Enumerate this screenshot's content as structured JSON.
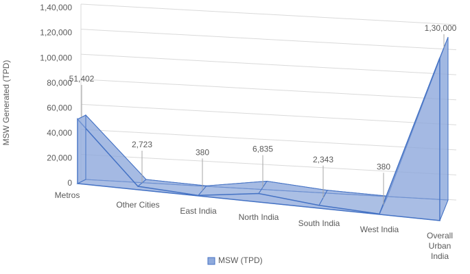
{
  "chart_data": {
    "type": "area3d",
    "y_label": "MSW Generated (TPD)",
    "categories": [
      "Metros",
      "Other Cities",
      "East India",
      "North India",
      "South India",
      "West India",
      "Overall Urban India"
    ],
    "series": [
      {
        "name": "MSW (TPD)",
        "color": "#4472c4",
        "values": [
          51402,
          2723,
          380,
          6835,
          2343,
          380,
          130000
        ],
        "value_labels": [
          "51,402",
          "2,723",
          "380",
          "6,835",
          "2,343",
          "380",
          "1,30,000"
        ]
      }
    ],
    "ylim": [
      0,
      140000
    ],
    "yticks": [
      0,
      {
        "value": 20000,
        "label": "20,000"
      },
      {
        "value": 40000,
        "label": "40,000"
      },
      {
        "value": 60000,
        "label": "60,000"
      },
      {
        "value": 80000,
        "label": "80,000"
      },
      {
        "value": 100000,
        "label": "1,00,000"
      },
      {
        "value": 120000,
        "label": "1,20,000"
      },
      {
        "value": 140000,
        "label": "1,40,000"
      }
    ],
    "grid": true,
    "legend": "bottom"
  }
}
